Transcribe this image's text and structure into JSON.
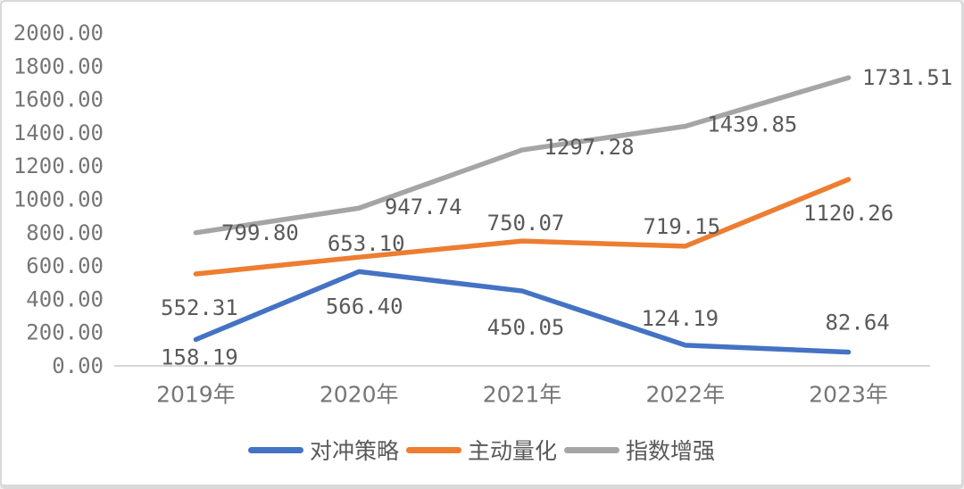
{
  "chart_data": {
    "type": "line",
    "categories": [
      "2019年",
      "2020年",
      "2021年",
      "2022年",
      "2023年"
    ],
    "series": [
      {
        "name": "对冲策略",
        "color": "#4472C4",
        "values": [
          158.19,
          566.4,
          450.05,
          124.19,
          82.64
        ],
        "labels": [
          "158.19",
          "566.40",
          "450.05",
          "124.19",
          "82.64"
        ],
        "label_offsets": [
          [
            4,
            20
          ],
          [
            6,
            39
          ],
          [
            4,
            41
          ],
          [
            -6,
            -30
          ],
          [
            10,
            -33
          ]
        ]
      },
      {
        "name": "主动量化",
        "color": "#ED7D31",
        "values": [
          552.31,
          653.1,
          750.07,
          719.15,
          1120.26
        ],
        "labels": [
          "552.31",
          "653.10",
          "750.07",
          "719.15",
          "1120.26"
        ],
        "label_offsets": [
          [
            4,
            38
          ],
          [
            8,
            -15
          ],
          [
            4,
            -20
          ],
          [
            -4,
            -22
          ],
          [
            0,
            38
          ]
        ]
      },
      {
        "name": "指数增强",
        "color": "#A5A5A5",
        "values": [
          799.8,
          947.74,
          1297.28,
          1439.85,
          1731.51
        ],
        "labels": [
          "799.80",
          "947.74",
          "1297.28",
          "1439.85",
          "1731.51"
        ],
        "label_offsets": [
          [
            72,
            0
          ],
          [
            72,
            -1
          ],
          [
            75,
            -3
          ],
          [
            75,
            -2
          ],
          [
            66,
            0
          ]
        ]
      }
    ],
    "title": "",
    "xlabel": "",
    "ylabel": "",
    "y_axis": {
      "min": 0,
      "max": 2000,
      "step": 200
    },
    "y_ticks": [
      "0.00",
      "200.00",
      "400.00",
      "600.00",
      "800.00",
      "1000.00",
      "1200.00",
      "1400.00",
      "1600.00",
      "1800.00",
      "2000.00"
    ],
    "grid": false,
    "legend_position": "bottom"
  },
  "legend": {
    "items": [
      {
        "label": "对冲策略",
        "color": "#4472C4"
      },
      {
        "label": "主动量化",
        "color": "#ED7D31"
      },
      {
        "label": "指数增强",
        "color": "#A5A5A5"
      }
    ]
  },
  "colors": {
    "axis_line": "#d6d6d6",
    "tick_label": "#767676",
    "data_label": "#595959",
    "border": "#d9d9d9",
    "background": "#ffffff"
  }
}
